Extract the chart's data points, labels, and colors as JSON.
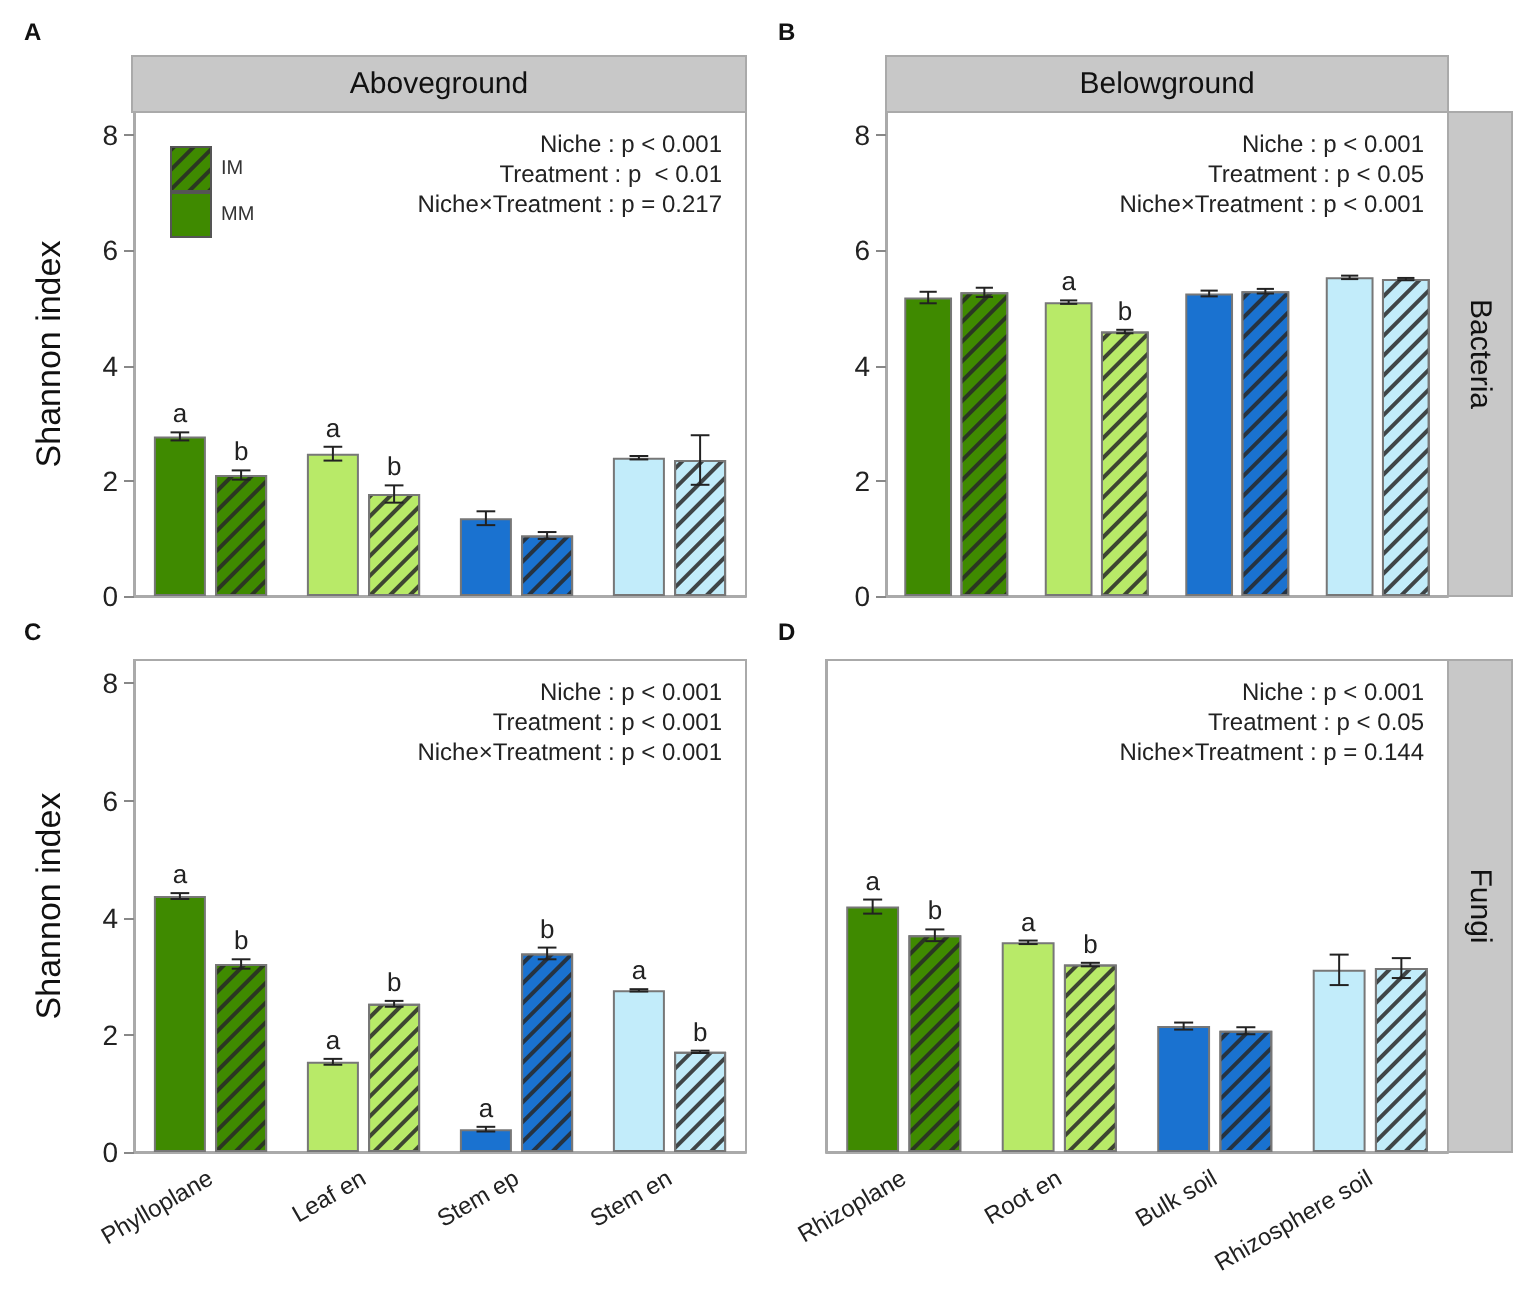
{
  "chart_data": [
    {
      "type": "bar",
      "title": "Aboveground",
      "subtitle": "A",
      "ylabel": "Shannon index",
      "categories": [
        null,
        null,
        null,
        null
      ],
      "ylim": [
        0,
        8.4
      ],
      "yticks": [
        0,
        2,
        4,
        6,
        8
      ],
      "tick_labels": "y",
      "legend": "top left",
      "annotations": [
        "Niche : p < 0.001",
        "Treatment : p  < 0.01",
        "Niche×Treatment : p = 0.217"
      ],
      "series": [
        {
          "name": "MM",
          "colors": [
            "#3f8a00",
            "#b8ea68",
            "#1a72d0",
            "#c2ecfa"
          ],
          "values": [
            2.77,
            2.47,
            1.35,
            2.4
          ],
          "errors": [
            0.07,
            0.12,
            0.12,
            0.03
          ],
          "value_labels": [
            "a",
            "a",
            null,
            null
          ]
        },
        {
          "name": "IM",
          "colors": [
            "#3f8a00",
            "#b8ea68",
            "#1a72d0",
            "#c2ecfa"
          ],
          "values": [
            2.1,
            1.77,
            1.05,
            2.36
          ],
          "errors": [
            0.08,
            0.15,
            0.06,
            0.43
          ],
          "value_labels": [
            "b",
            "b",
            null,
            null
          ]
        }
      ]
    },
    {
      "type": "bar",
      "title": "Belowground",
      "subtitle": "B",
      "y2label": "Bacteria",
      "categories": [
        null,
        null,
        null,
        null
      ],
      "ylim": [
        0,
        8.4
      ],
      "yticks": [
        0,
        2,
        4,
        6,
        8
      ],
      "tick_labels": "y",
      "annotations": [
        "Niche : p < 0.001",
        "Treatment : p < 0.05",
        "Niche×Treatment : p < 0.001"
      ],
      "series": [
        {
          "colors": [
            "#3f8a00",
            "#b8ea68",
            "#1a72d0",
            "#c2ecfa"
          ],
          "values": [
            5.18,
            5.1,
            5.25,
            5.53
          ],
          "errors": [
            0.1,
            0.03,
            0.05,
            0.03
          ],
          "value_labels": [
            null,
            "a",
            null,
            null
          ]
        },
        {
          "colors": [
            "#3f8a00",
            "#b8ea68",
            "#1a72d0",
            "#c2ecfa"
          ],
          "values": [
            5.27,
            4.59,
            5.29,
            5.5
          ],
          "errors": [
            0.08,
            0.03,
            0.04,
            0.02
          ],
          "value_labels": [
            null,
            "b",
            null,
            null
          ]
        }
      ]
    },
    {
      "type": "bar",
      "subtitle": "C",
      "ylabel": "Shannon index",
      "categories": [
        "Phylloplane",
        "Leaf en",
        "Stem ep",
        "Stem en"
      ],
      "ylim": [
        0,
        8.4
      ],
      "yticks": [
        0,
        2,
        4,
        6,
        8
      ],
      "annotations": [
        "Niche : p < 0.001",
        "Treatment : p < 0.001",
        "Niche×Treatment : p < 0.001"
      ],
      "series": [
        {
          "colors": [
            "#3f8a00",
            "#b8ea68",
            "#1a72d0",
            "#c2ecfa"
          ],
          "values": [
            4.37,
            1.54,
            0.39,
            2.76
          ],
          "errors": [
            0.05,
            0.05,
            0.04,
            0.02
          ],
          "value_labels": [
            "a",
            "a",
            "a",
            "a"
          ]
        },
        {
          "colors": [
            "#3f8a00",
            "#b8ea68",
            "#1a72d0",
            "#c2ecfa"
          ],
          "values": [
            3.21,
            2.53,
            3.39,
            1.71
          ],
          "errors": [
            0.08,
            0.05,
            0.1,
            0.02
          ],
          "value_labels": [
            "b",
            "b",
            "b",
            "b"
          ]
        }
      ]
    },
    {
      "type": "bar",
      "subtitle": "D",
      "y2label": "Fungi",
      "categories": [
        "Rhizoplane",
        "Root en",
        "Bulk soil",
        "Rhizosphere soil"
      ],
      "ylim": [
        0,
        8.4
      ],
      "yticks": [
        0,
        2,
        4,
        6,
        8
      ],
      "tick_labels": "x",
      "annotations": [
        "Niche : p < 0.001",
        "Treatment : p < 0.05",
        "Niche×Treatment : p = 0.144"
      ],
      "series": [
        {
          "colors": [
            "#3f8a00",
            "#b8ea68",
            "#1a72d0",
            "#c2ecfa"
          ],
          "values": [
            4.19,
            3.58,
            2.15,
            3.11
          ],
          "errors": [
            0.12,
            0.03,
            0.06,
            0.26
          ],
          "value_labels": [
            "a",
            "a",
            null,
            null
          ]
        },
        {
          "colors": [
            "#3f8a00",
            "#b8ea68",
            "#1a72d0",
            "#c2ecfa"
          ],
          "values": [
            3.7,
            3.2,
            2.07,
            3.14
          ],
          "errors": [
            0.1,
            0.03,
            0.06,
            0.17
          ],
          "value_labels": [
            "b",
            "b",
            null,
            null
          ]
        }
      ]
    }
  ]
}
